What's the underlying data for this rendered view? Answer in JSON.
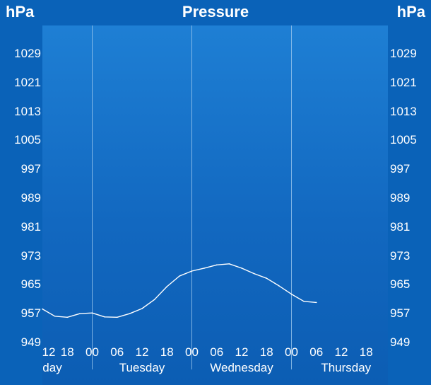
{
  "header": {
    "title": "Pressure",
    "unit_left": "hPa",
    "unit_right": "hPa"
  },
  "chart_data": {
    "type": "line",
    "title": "Pressure",
    "ylabel": "hPa",
    "ylim": [
      949,
      1037
    ],
    "y_ticks": [
      1029,
      1021,
      1013,
      1005,
      997,
      989,
      981,
      973,
      965,
      957,
      949
    ],
    "x_hours_range": [
      12,
      96
    ],
    "x_tick_labels": [
      "12",
      "18",
      "00",
      "06",
      "12",
      "18",
      "00",
      "06",
      "12",
      "18",
      "00",
      "06",
      "12",
      "18"
    ],
    "day_labels": [
      "day",
      "Tuesday",
      "Wednesday",
      "Thursday"
    ],
    "series": [
      {
        "x": [
          12,
          15,
          18,
          21,
          24,
          27,
          30,
          33,
          36,
          39,
          42,
          45,
          48,
          51,
          54,
          57,
          60,
          63,
          66,
          69,
          72,
          75,
          78
        ],
        "values": [
          958.5,
          956.5,
          956.2,
          957.2,
          957.4,
          956.3,
          956.2,
          957.2,
          958.6,
          961.1,
          964.7,
          967.6,
          969.0,
          969.8,
          970.7,
          971.0,
          969.8,
          968.3,
          967.0,
          964.9,
          962.6,
          960.6,
          960.3
        ]
      }
    ],
    "colors": {
      "line": "#ffffff",
      "grid": "#9cc8ee"
    }
  }
}
